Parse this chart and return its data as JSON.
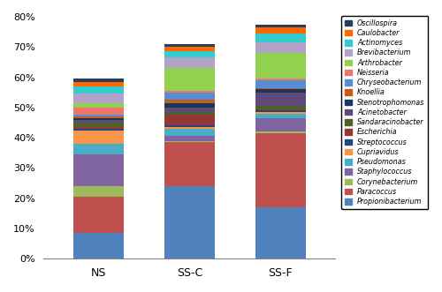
{
  "categories": [
    "NS",
    "SS-C",
    "SS-F"
  ],
  "genera": [
    "Propionibacterium",
    "Paracoccus",
    "Corynebacterium",
    "Staphylococcus",
    "Pseudomonas",
    "Cupriavidus",
    "Streptococcus",
    "Escherichia",
    "Sandaracinobacter",
    "Acinetobacter",
    "Stenotrophomonas",
    "Knoellia",
    "Chryseobacterium",
    "Neisseria",
    "Arthrobacter",
    "Brevibacterium",
    "Actinomyces",
    "Caulobacter",
    "Oscillospira"
  ],
  "colors": [
    "#4F81BD",
    "#C0504D",
    "#9BBB59",
    "#8064A2",
    "#4BACC6",
    "#F79646",
    "#1F497D",
    "#943634",
    "#4E6228",
    "#604A7B",
    "#17375E",
    "#C75B17",
    "#558ED5",
    "#F0756A",
    "#92D050",
    "#B2A2C7",
    "#33CCCC",
    "#FF6600",
    "#243F60"
  ],
  "values": {
    "NS": [
      8.5,
      12.0,
      3.5,
      10.5,
      3.5,
      4.5,
      0.5,
      0.5,
      1.5,
      1.0,
      0.5,
      0.5,
      0.5,
      2.5,
      1.5,
      3.0,
      2.5,
      1.5,
      1.0
    ],
    "SS-C": [
      24.0,
      14.5,
      0.5,
      1.5,
      2.5,
      0.5,
      0.5,
      3.5,
      1.0,
      1.5,
      1.5,
      1.0,
      2.5,
      0.5,
      7.5,
      3.5,
      2.0,
      1.5,
      1.0
    ],
    "SS-F": [
      17.0,
      24.5,
      0.5,
      4.5,
      1.5,
      0.5,
      0.5,
      0.5,
      1.0,
      4.5,
      1.0,
      0.5,
      2.5,
      0.5,
      8.5,
      3.5,
      3.0,
      2.0,
      1.0
    ]
  },
  "ylim": [
    0,
    80
  ],
  "yticks": [
    0,
    10,
    20,
    30,
    40,
    50,
    60,
    70,
    80
  ],
  "ytick_labels": [
    "0%",
    "10%",
    "20%",
    "30%",
    "40%",
    "50%",
    "60%",
    "70%",
    "80%"
  ],
  "figsize": [
    5.0,
    3.31
  ],
  "dpi": 100,
  "bar_width": 0.55
}
